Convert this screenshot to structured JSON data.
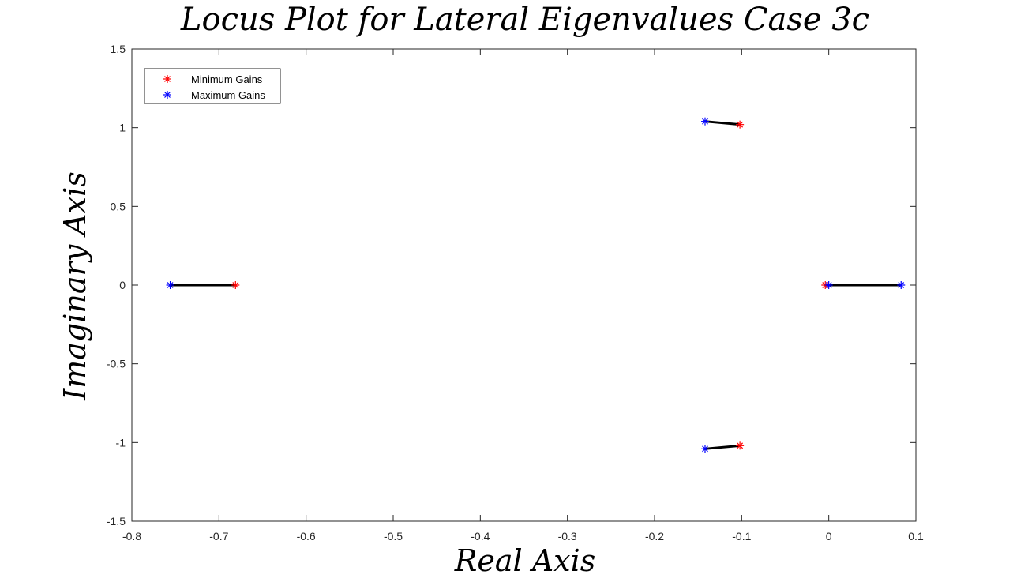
{
  "chart_data": {
    "type": "scatter",
    "title": "Locus Plot for Lateral Eigenvalues Case 3c",
    "xlabel": "Real Axis",
    "ylabel": "Imaginary Axis",
    "xlim": [
      -0.8,
      0.1
    ],
    "ylim": [
      -1.5,
      1.5
    ],
    "x_ticks": [
      "-0.8",
      "-0.7",
      "-0.6",
      "-0.5",
      "-0.4",
      "-0.3",
      "-0.2",
      "-0.1",
      "0",
      "0.1"
    ],
    "y_ticks": [
      "1.5",
      "1",
      "0.5",
      "0",
      "-0.5",
      "-1",
      "-1.5"
    ],
    "grid": false,
    "legend_position": "top-left",
    "series": [
      {
        "name": "Minimum Gains",
        "color": "#ff0000",
        "marker": "asterisk",
        "points": [
          {
            "x": -0.681,
            "y": 0
          },
          {
            "x": -0.102,
            "y": 1.02
          },
          {
            "x": -0.102,
            "y": -1.02
          },
          {
            "x": -0.004,
            "y": 0
          }
        ]
      },
      {
        "name": "Maximum Gains",
        "color": "#0000ff",
        "marker": "asterisk",
        "points": [
          {
            "x": -0.756,
            "y": 0
          },
          {
            "x": -0.142,
            "y": 1.04
          },
          {
            "x": -0.142,
            "y": -1.04
          },
          {
            "x": 0.0,
            "y": 0
          },
          {
            "x": 0.083,
            "y": 0
          }
        ]
      }
    ],
    "locus_lines": [
      {
        "from": {
          "x": -0.756,
          "y": 0
        },
        "to": {
          "x": -0.681,
          "y": 0
        }
      },
      {
        "from": {
          "x": -0.142,
          "y": 1.04
        },
        "to": {
          "x": -0.102,
          "y": 1.02
        }
      },
      {
        "from": {
          "x": -0.142,
          "y": -1.04
        },
        "to": {
          "x": -0.102,
          "y": -1.02
        }
      },
      {
        "from": {
          "x": -0.004,
          "y": 0
        },
        "to": {
          "x": 0.083,
          "y": 0
        }
      }
    ],
    "line_color": "#000000"
  }
}
